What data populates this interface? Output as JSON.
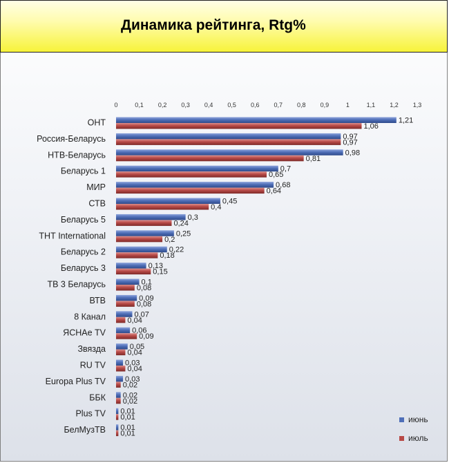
{
  "chart_data": {
    "type": "bar",
    "orientation": "horizontal",
    "title": "Динамика рейтинга, Rtg%",
    "xlim": [
      0,
      1.3
    ],
    "xticks": [
      "0",
      "0,1",
      "0,2",
      "0,3",
      "0,4",
      "0,5",
      "0,6",
      "0,7",
      "0,8",
      "0,9",
      "1",
      "1,1",
      "1,2",
      "1,3"
    ],
    "grid": false,
    "legend_position": "bottom-right",
    "categories": [
      "ОНТ",
      "Россия-Беларусь",
      "НТВ-Беларусь",
      "Беларусь 1",
      "МИР",
      "СТВ",
      "Беларусь 5",
      "ТНТ International",
      "Беларусь 2",
      "Беларусь 3",
      "ТВ 3 Беларусь",
      "ВТВ",
      "8 Канал",
      "ЯСНАе TV",
      "Звязда",
      "RU TV",
      "Europa Plus TV",
      "ББК",
      "Plus TV",
      "БелМузТВ"
    ],
    "series": [
      {
        "name": "июнь",
        "color": "#4f6fb8",
        "values": [
          1.21,
          0.97,
          0.98,
          0.7,
          0.68,
          0.45,
          0.3,
          0.25,
          0.22,
          0.13,
          0.1,
          0.09,
          0.07,
          0.06,
          0.05,
          0.03,
          0.03,
          0.02,
          0.01,
          0.01
        ],
        "labels": [
          "1,21",
          "0,97",
          "0,98",
          "0,7",
          "0,68",
          "0,45",
          "0,3",
          "0,25",
          "0,22",
          "0,13",
          "0,1",
          "0,09",
          "0,07",
          "0,06",
          "0,05",
          "0,03",
          "0,03",
          "0,02",
          "0,01",
          "0,01"
        ]
      },
      {
        "name": "июль",
        "color": "#b84a47",
        "values": [
          1.06,
          0.97,
          0.81,
          0.65,
          0.64,
          0.4,
          0.24,
          0.2,
          0.18,
          0.15,
          0.08,
          0.08,
          0.04,
          0.09,
          0.04,
          0.04,
          0.02,
          0.02,
          0.01,
          0.01
        ],
        "labels": [
          "1,06",
          "0,97",
          "0,81",
          "0,65",
          "0,64",
          "0,4",
          "0,24",
          "0,2",
          "0,18",
          "0,15",
          "0,08",
          "0,08",
          "0,04",
          "0,09",
          "0,04",
          "0,04",
          "0,02",
          "0,02",
          "0,01",
          "0,01"
        ]
      }
    ]
  }
}
